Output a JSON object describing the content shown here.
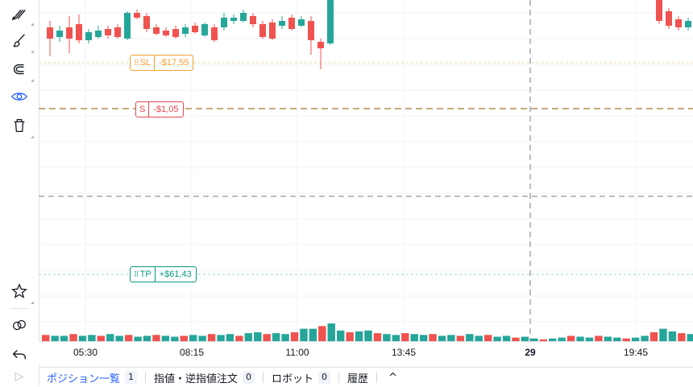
{
  "toolbar": {
    "tools": [
      {
        "icon": "brush-tools-icon"
      },
      {
        "icon": "paintbrush-icon"
      },
      {
        "icon": "magnet-icon"
      },
      {
        "icon": "eye-icon"
      },
      {
        "icon": "trash-icon"
      },
      {
        "icon": "star-icon"
      },
      {
        "icon": "link-icon"
      },
      {
        "icon": "undo-icon"
      }
    ]
  },
  "orders": {
    "sl": {
      "tag": "SL",
      "pnl": "-$17,55",
      "color": "#f0a030"
    },
    "s": {
      "tag": "S",
      "pnl": "-$1,05",
      "color": "#e5484d"
    },
    "tp": {
      "tag": "TP",
      "pnl": "+$61,43",
      "color": "#089981"
    }
  },
  "time_axis": {
    "labels": [
      "05:30",
      "08:15",
      "11:00",
      "13:45",
      "29",
      "19:45"
    ]
  },
  "bottom_tabs": [
    {
      "label": "ポジション一覧",
      "count": "1"
    },
    {
      "label": "指値・逆指値注文",
      "count": "0"
    },
    {
      "label": "ロボット",
      "count": "0"
    },
    {
      "label": "履歴",
      "count": ""
    }
  ],
  "bottom_chevron": "^",
  "colors": {
    "up": "#26a69a",
    "down": "#ef5350",
    "accent": "#2962ff"
  }
}
